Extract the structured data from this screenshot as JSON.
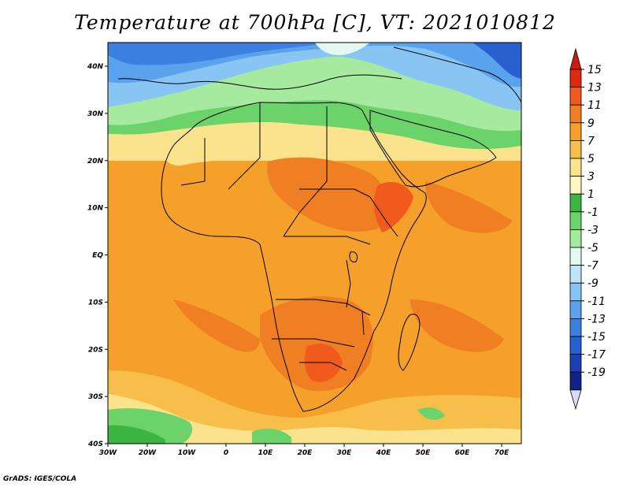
{
  "title": "Temperature at 700hPa [C], VT: 2021010812",
  "credit": "GrADS: IGES/COLA",
  "map": {
    "lon_labels": [
      "30W",
      "20W",
      "10W",
      "0",
      "10E",
      "20E",
      "30E",
      "40E",
      "50E",
      "60E",
      "70E"
    ],
    "lat_labels": [
      "40N",
      "30N",
      "20N",
      "10N",
      "EQ",
      "10S",
      "20S",
      "30S",
      "40S"
    ]
  },
  "colorbar": {
    "labels": [
      "15",
      "13",
      "11",
      "9",
      "7",
      "5",
      "3",
      "1",
      "-1",
      "-3",
      "-5",
      "-7",
      "-9",
      "-11",
      "-13",
      "-15",
      "-17",
      "-19"
    ],
    "colors": [
      "#e02a10",
      "#f05a1c",
      "#f07e22",
      "#f5a02a",
      "#f8be4a",
      "#fbe28c",
      "#fff8c4",
      "#3cb442",
      "#6cd26a",
      "#a6eaa0",
      "#e2f8f0",
      "#bde4f8",
      "#88c4f4",
      "#5aa2ec",
      "#3c80e0",
      "#2860d0",
      "#1c40b4",
      "#102488"
    ],
    "top_arrow_color": "#c81e0c",
    "bottom_arrow_color": "#d8d8f8"
  }
}
